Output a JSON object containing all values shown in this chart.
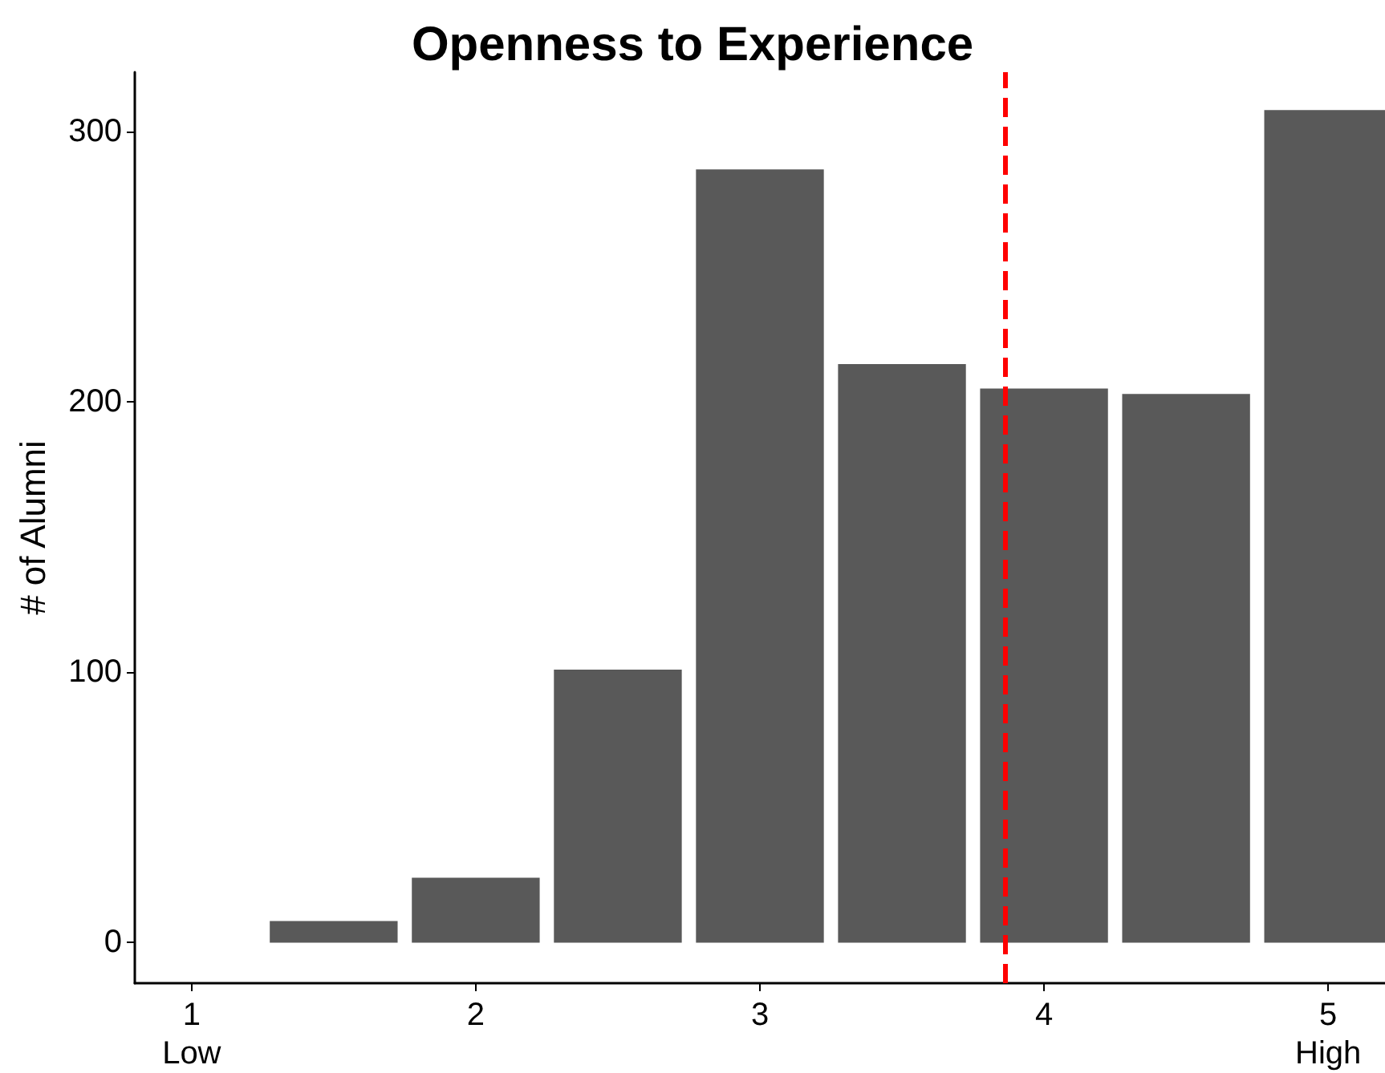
{
  "chart_data": {
    "type": "bar",
    "title": "Openness to Experience",
    "ylabel": "# of Alumni",
    "x": [
      1.5,
      2,
      2.5,
      3,
      3.5,
      4,
      4.5,
      5
    ],
    "series": [
      {
        "color": "#595959",
        "values": [
          8,
          24,
          101,
          286,
          214,
          205,
          203,
          308
        ]
      }
    ],
    "xlim": [
      0.8,
      5.2
    ],
    "xticks": [
      {
        "value": 1,
        "label": "1\nLow"
      },
      2,
      3,
      4,
      {
        "value": 5,
        "label": "5\nHigh"
      }
    ],
    "ylim": [
      -15,
      322
    ],
    "yticks": [
      0,
      100,
      200,
      300
    ],
    "ref_lines": [
      {
        "axis": "x",
        "value": 3.86,
        "color": "#ff0000",
        "line_style": "dashed"
      }
    ]
  }
}
